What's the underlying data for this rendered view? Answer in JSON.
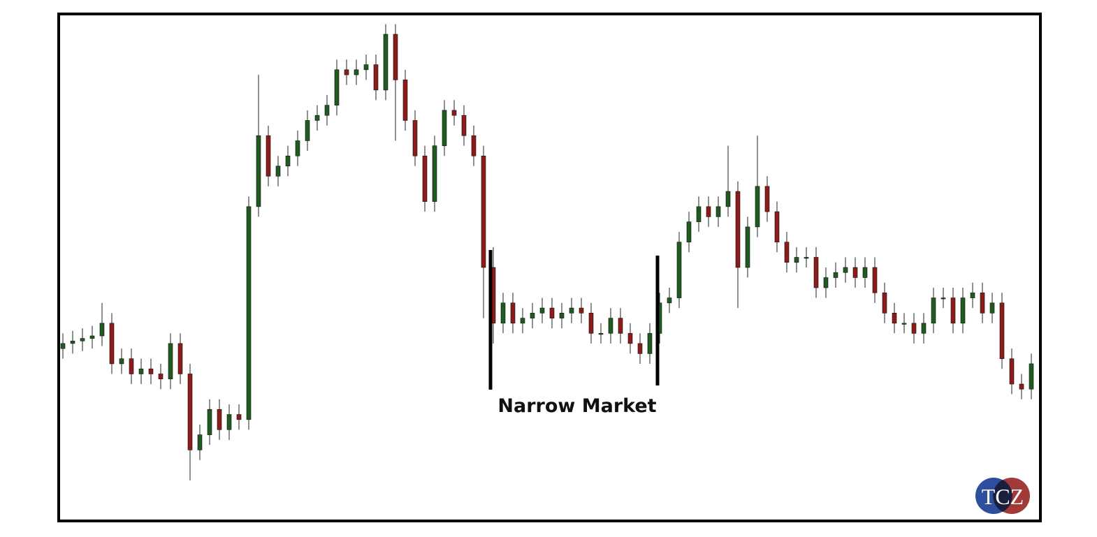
{
  "chart_data": {
    "type": "candlestick",
    "annotation": "Narrow Market",
    "logo": "TCZ",
    "ylim": [
      0,
      100
    ],
    "up_color": "#1f5a1f",
    "down_color": "#8e1a1a",
    "open": [
      34,
      35,
      35.5,
      36,
      36.5,
      39,
      31,
      32,
      29,
      30,
      29,
      28,
      35,
      29,
      14,
      17,
      22,
      18,
      21,
      20,
      62,
      76,
      68,
      70,
      72,
      75,
      79,
      80,
      82,
      89,
      88,
      89,
      90,
      85,
      96,
      87,
      79,
      72,
      63,
      74,
      81,
      80,
      76,
      72,
      50,
      39,
      43,
      39,
      40,
      41,
      42,
      40,
      41,
      42,
      41,
      37,
      37,
      40,
      37,
      35,
      33,
      37,
      43,
      44,
      55,
      59,
      62,
      60,
      62,
      65,
      50,
      58,
      66,
      61,
      55,
      51,
      52,
      52,
      46,
      48,
      49,
      50,
      48,
      50,
      45,
      41,
      39,
      39,
      37,
      39,
      44,
      44,
      39,
      44,
      45,
      41,
      43,
      32,
      27,
      26
    ],
    "high": [
      37,
      37.5,
      38,
      38.5,
      43,
      41,
      34,
      34,
      32,
      32,
      31,
      37,
      37,
      31,
      19,
      24,
      24,
      23,
      23,
      64,
      88,
      78,
      72,
      74,
      77,
      81,
      82,
      84,
      91,
      91,
      91,
      92,
      92,
      98,
      98,
      89,
      81,
      74,
      76,
      83,
      83,
      82,
      78,
      74,
      54,
      45,
      45,
      42,
      43,
      44,
      44,
      43,
      44,
      44,
      43,
      39,
      42,
      42,
      39,
      37,
      39,
      45,
      46,
      57,
      61,
      64,
      64,
      64,
      74,
      67,
      60,
      76,
      68,
      63,
      57,
      54,
      54,
      54,
      50,
      51,
      52,
      52,
      52,
      52,
      47,
      43,
      41,
      41,
      41,
      46,
      46,
      46,
      46,
      47,
      47,
      45,
      45,
      34,
      29,
      33
    ],
    "low": [
      32,
      33,
      33.5,
      34,
      34.5,
      29,
      29,
      27,
      27,
      27,
      26,
      26,
      27,
      8,
      12,
      15,
      16,
      16,
      18,
      18,
      60,
      66,
      66,
      68,
      70,
      73,
      77,
      78,
      80,
      86,
      86,
      87,
      83,
      83,
      75,
      77,
      70,
      61,
      61,
      72,
      78,
      74,
      70,
      40,
      35,
      37,
      37,
      37,
      38,
      39,
      38,
      38,
      39,
      39,
      35,
      35,
      35,
      35,
      33,
      31,
      31,
      35,
      41,
      42,
      53,
      57,
      58,
      58,
      60,
      42,
      48,
      56,
      59,
      53,
      49,
      49,
      50,
      44,
      44,
      46,
      47,
      46,
      46,
      43,
      39,
      37,
      37,
      35,
      35,
      37,
      42,
      37,
      37,
      42,
      39,
      39,
      30,
      25,
      24,
      24
    ],
    "close": [
      35,
      35.5,
      36,
      36.5,
      39,
      31,
      32,
      29,
      30,
      29,
      28,
      35,
      29,
      14,
      17,
      22,
      18,
      21,
      20,
      62,
      76,
      68,
      70,
      72,
      75,
      79,
      80,
      82,
      89,
      88,
      89,
      90,
      85,
      96,
      87,
      79,
      72,
      63,
      74,
      81,
      80,
      76,
      72,
      50,
      39,
      43,
      39,
      40,
      41,
      42,
      40,
      41,
      42,
      41,
      37,
      37,
      40,
      37,
      35,
      33,
      37,
      43,
      44,
      55,
      59,
      62,
      60,
      62,
      65,
      50,
      58,
      66,
      61,
      55,
      51,
      52,
      52,
      46,
      48,
      49,
      50,
      48,
      50,
      45,
      41,
      39,
      39,
      37,
      39,
      44,
      44,
      39,
      44,
      45,
      41,
      43,
      32,
      27,
      26,
      31
    ]
  }
}
